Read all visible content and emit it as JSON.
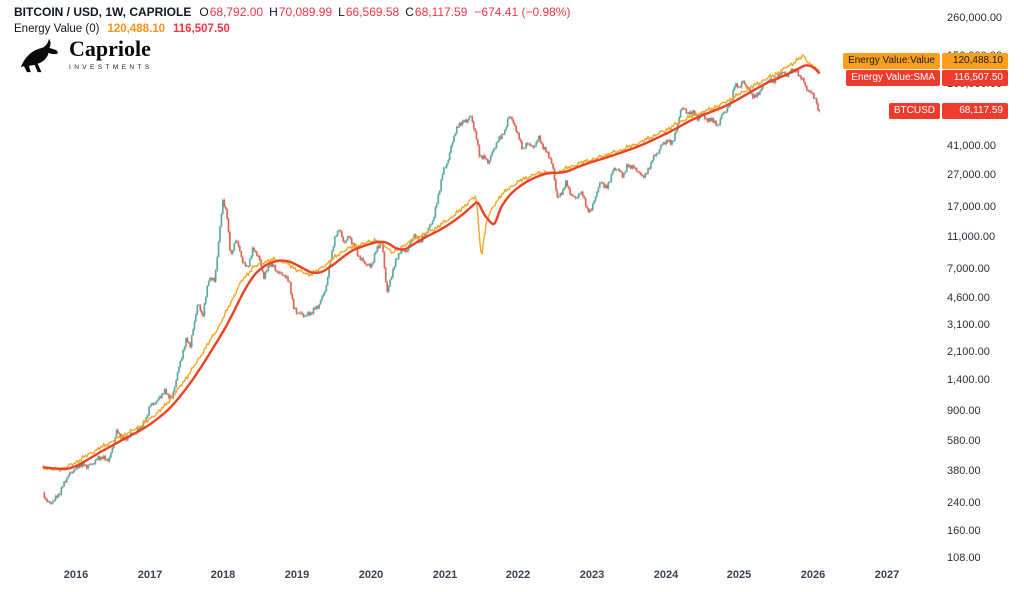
{
  "header": {
    "title": "BITCOIN / USD, 1W, CAPRIOLE",
    "ohlc": [
      {
        "k": "O",
        "v": "68,792.00"
      },
      {
        "k": "H",
        "v": "70,089.99"
      },
      {
        "k": "L",
        "v": "66,569.58"
      },
      {
        "k": "C",
        "v": "68,117.59"
      }
    ],
    "change": "−674.41 (−0.98%)",
    "indicator": {
      "name": "Energy Value (0)",
      "value": "120,488.10",
      "sma": "116,507.50"
    }
  },
  "logo": {
    "name": "Capriole",
    "subtitle": "INVESTMENTS"
  },
  "price_labels": [
    {
      "label": "Energy Value:Value",
      "value": "120,488.10",
      "bg": "#f8a01d",
      "fg": "#1c1c1c"
    },
    {
      "label": "Energy Value:SMA",
      "value": "116,507.50",
      "bg": "#ef3b2d",
      "fg": "#ffffff"
    },
    {
      "label": "BTCUSD",
      "value": "68,117.59",
      "bg": "#ef3b2d",
      "fg": "#ffffff",
      "at_price": 68117.59
    }
  ],
  "chart_data": {
    "type": "candlestick_with_lines",
    "title": "BITCOIN / USD, 1W, CAPRIOLE — Capriole Energy Value",
    "y_scale": "log",
    "ylim": [
      108,
      260000
    ],
    "grid": false,
    "y_ticks": [
      260000,
      150000,
      100000,
      41000,
      27000,
      17000,
      11000,
      7000,
      4600,
      3100,
      2100,
      1400,
      900,
      580,
      380,
      240,
      160,
      108
    ],
    "x_labels": [
      2016,
      2017,
      2018,
      2019,
      2020,
      2021,
      2022,
      2023,
      2024,
      2025,
      2026,
      2027
    ],
    "x_range": [
      2015.55,
      2027.3
    ],
    "last_candle": {
      "open": 68792.0,
      "high": 70089.99,
      "low": 66569.58,
      "close": 68117.59,
      "change": -674.41,
      "change_pct": -0.98
    },
    "series": {
      "btc": {
        "name": "BTCUSD",
        "type": "candlestick",
        "up_color": "#58a79d",
        "down_color": "#df604e",
        "anchors": [
          [
            2015.55,
            270
          ],
          [
            2015.65,
            235
          ],
          [
            2015.75,
            262
          ],
          [
            2015.85,
            330
          ],
          [
            2015.95,
            375
          ],
          [
            2016.05,
            420
          ],
          [
            2016.15,
            400
          ],
          [
            2016.3,
            455
          ],
          [
            2016.45,
            450
          ],
          [
            2016.55,
            660
          ],
          [
            2016.65,
            600
          ],
          [
            2016.8,
            655
          ],
          [
            2016.95,
            790
          ],
          [
            2017.0,
            965
          ],
          [
            2017.1,
            1050
          ],
          [
            2017.2,
            1180
          ],
          [
            2017.3,
            1090
          ],
          [
            2017.4,
            1700
          ],
          [
            2017.5,
            2600
          ],
          [
            2017.55,
            2300
          ],
          [
            2017.65,
            4200
          ],
          [
            2017.72,
            3600
          ],
          [
            2017.8,
            6000
          ],
          [
            2017.88,
            5900
          ],
          [
            2017.93,
            9800
          ],
          [
            2017.99,
            19000
          ],
          [
            2018.05,
            14500
          ],
          [
            2018.1,
            8300
          ],
          [
            2018.17,
            11000
          ],
          [
            2018.25,
            7900
          ],
          [
            2018.32,
            7100
          ],
          [
            2018.4,
            9300
          ],
          [
            2018.48,
            8200
          ],
          [
            2018.55,
            6300
          ],
          [
            2018.63,
            7500
          ],
          [
            2018.72,
            6800
          ],
          [
            2018.82,
            6400
          ],
          [
            2018.9,
            5600
          ],
          [
            2018.95,
            4000
          ],
          [
            2019.02,
            3700
          ],
          [
            2019.1,
            3500
          ],
          [
            2019.2,
            3800
          ],
          [
            2019.3,
            4100
          ],
          [
            2019.4,
            5600
          ],
          [
            2019.45,
            8000
          ],
          [
            2019.52,
            11000
          ],
          [
            2019.57,
            12600
          ],
          [
            2019.63,
            10300
          ],
          [
            2019.7,
            11000
          ],
          [
            2019.78,
            9600
          ],
          [
            2019.85,
            8200
          ],
          [
            2019.93,
            7400
          ],
          [
            2020.0,
            7250
          ],
          [
            2020.08,
            9400
          ],
          [
            2020.15,
            10100
          ],
          [
            2020.22,
            5000
          ],
          [
            2020.3,
            6900
          ],
          [
            2020.4,
            9100
          ],
          [
            2020.5,
            9200
          ],
          [
            2020.58,
            11300
          ],
          [
            2020.67,
            10400
          ],
          [
            2020.75,
            11600
          ],
          [
            2020.83,
            13600
          ],
          [
            2020.9,
            18500
          ],
          [
            2020.97,
            27000
          ],
          [
            2021.05,
            34000
          ],
          [
            2021.12,
            47000
          ],
          [
            2021.2,
            56000
          ],
          [
            2021.3,
            60000
          ],
          [
            2021.35,
            63500
          ],
          [
            2021.42,
            49000
          ],
          [
            2021.47,
            36500
          ],
          [
            2021.55,
            34500
          ],
          [
            2021.6,
            31800
          ],
          [
            2021.67,
            40000
          ],
          [
            2021.75,
            47000
          ],
          [
            2021.82,
            49500
          ],
          [
            2021.87,
            64500
          ],
          [
            2021.95,
            56500
          ],
          [
            2022.0,
            46500
          ],
          [
            2022.07,
            38500
          ],
          [
            2022.13,
            44000
          ],
          [
            2022.2,
            39500
          ],
          [
            2022.28,
            46000
          ],
          [
            2022.35,
            40000
          ],
          [
            2022.42,
            35500
          ],
          [
            2022.47,
            29500
          ],
          [
            2022.53,
            19500
          ],
          [
            2022.6,
            21500
          ],
          [
            2022.65,
            24000
          ],
          [
            2022.72,
            20000
          ],
          [
            2022.8,
            19800
          ],
          [
            2022.87,
            21000
          ],
          [
            2022.93,
            16200
          ],
          [
            2023.0,
            16800
          ],
          [
            2023.07,
            21300
          ],
          [
            2023.13,
            24600
          ],
          [
            2023.2,
            22400
          ],
          [
            2023.28,
            28300
          ],
          [
            2023.35,
            29700
          ],
          [
            2023.42,
            26900
          ],
          [
            2023.48,
            30600
          ],
          [
            2023.55,
            30200
          ],
          [
            2023.62,
            29200
          ],
          [
            2023.68,
            26100
          ],
          [
            2023.75,
            27600
          ],
          [
            2023.82,
            34600
          ],
          [
            2023.9,
            37500
          ],
          [
            2023.97,
            43000
          ],
          [
            2024.03,
            44500
          ],
          [
            2024.1,
            43200
          ],
          [
            2024.15,
            52000
          ],
          [
            2024.2,
            68000
          ],
          [
            2024.25,
            73000
          ],
          [
            2024.3,
            64500
          ],
          [
            2024.37,
            67000
          ],
          [
            2024.43,
            61200
          ],
          [
            2024.5,
            65500
          ],
          [
            2024.57,
            57800
          ],
          [
            2024.63,
            61500
          ],
          [
            2024.7,
            54500
          ],
          [
            2024.77,
            64200
          ],
          [
            2024.83,
            69500
          ],
          [
            2024.88,
            77000
          ],
          [
            2024.93,
            98000
          ],
          [
            2025.0,
            95000
          ],
          [
            2025.05,
            104500
          ],
          [
            2025.1,
            97500
          ],
          [
            2025.17,
            84500
          ],
          [
            2025.22,
            82500
          ],
          [
            2025.3,
            95500
          ],
          [
            2025.37,
            104000
          ],
          [
            2025.45,
            103500
          ],
          [
            2025.5,
            108500
          ],
          [
            2025.55,
            118500
          ],
          [
            2025.6,
            116000
          ],
          [
            2025.65,
            112500
          ],
          [
            2025.7,
            122500
          ],
          [
            2025.75,
            125500
          ],
          [
            2025.8,
            113500
          ],
          [
            2025.85,
            108000
          ],
          [
            2025.9,
            96500
          ],
          [
            2025.95,
            90500
          ],
          [
            2026.0,
            86000
          ],
          [
            2026.04,
            77500
          ],
          [
            2026.08,
            70200
          ],
          [
            2026.1,
            68117.59
          ]
        ]
      },
      "energy_value": {
        "name": "Energy Value:Value",
        "type": "line",
        "color": "#f5a623",
        "current": 120488.1,
        "anchors": [
          [
            2015.55,
            400
          ],
          [
            2015.7,
            385
          ],
          [
            2015.85,
            395
          ],
          [
            2016.0,
            430
          ],
          [
            2016.2,
            490
          ],
          [
            2016.4,
            550
          ],
          [
            2016.6,
            620
          ],
          [
            2016.8,
            690
          ],
          [
            2017.0,
            800
          ],
          [
            2017.2,
            960
          ],
          [
            2017.4,
            1250
          ],
          [
            2017.6,
            1700
          ],
          [
            2017.8,
            2400
          ],
          [
            2017.95,
            3100
          ],
          [
            2018.1,
            4300
          ],
          [
            2018.25,
            5900
          ],
          [
            2018.4,
            7100
          ],
          [
            2018.55,
            7700
          ],
          [
            2018.7,
            8000
          ],
          [
            2018.85,
            7600
          ],
          [
            2019.0,
            6900
          ],
          [
            2019.15,
            6400
          ],
          [
            2019.3,
            6900
          ],
          [
            2019.45,
            7800
          ],
          [
            2019.6,
            8900
          ],
          [
            2019.75,
            9600
          ],
          [
            2019.9,
            10000
          ],
          [
            2020.05,
            10600
          ],
          [
            2020.2,
            9700
          ],
          [
            2020.3,
            8800
          ],
          [
            2020.45,
            9800
          ],
          [
            2020.6,
            10800
          ],
          [
            2020.75,
            11700
          ],
          [
            2020.9,
            12700
          ],
          [
            2021.05,
            14200
          ],
          [
            2021.2,
            16000
          ],
          [
            2021.35,
            18800
          ],
          [
            2021.43,
            19800
          ],
          [
            2021.5,
            8200
          ],
          [
            2021.57,
            13800
          ],
          [
            2021.65,
            16800
          ],
          [
            2021.75,
            19800
          ],
          [
            2021.9,
            22800
          ],
          [
            2022.05,
            25200
          ],
          [
            2022.2,
            27000
          ],
          [
            2022.35,
            28200
          ],
          [
            2022.5,
            27600
          ],
          [
            2022.65,
            29600
          ],
          [
            2022.8,
            31600
          ],
          [
            2022.95,
            33200
          ],
          [
            2023.1,
            34800
          ],
          [
            2023.25,
            36800
          ],
          [
            2023.4,
            38800
          ],
          [
            2023.55,
            41200
          ],
          [
            2023.7,
            44200
          ],
          [
            2023.85,
            47800
          ],
          [
            2024.0,
            51500
          ],
          [
            2024.15,
            56500
          ],
          [
            2024.3,
            61500
          ],
          [
            2024.45,
            65500
          ],
          [
            2024.6,
            69500
          ],
          [
            2024.75,
            74500
          ],
          [
            2024.9,
            81500
          ],
          [
            2025.05,
            89500
          ],
          [
            2025.2,
            98000
          ],
          [
            2025.35,
            107000
          ],
          [
            2025.5,
            116000
          ],
          [
            2025.6,
            124000
          ],
          [
            2025.7,
            133000
          ],
          [
            2025.8,
            143000
          ],
          [
            2025.87,
            150500
          ],
          [
            2025.93,
            139000
          ],
          [
            2026.0,
            129000
          ],
          [
            2026.05,
            123500
          ],
          [
            2026.1,
            120488.1
          ]
        ]
      },
      "energy_sma": {
        "name": "Energy Value:SMA",
        "type": "line",
        "color": "#e8432a",
        "current": 116507.5,
        "derived_from": "energy_value",
        "window_weeks": 12
      }
    }
  }
}
